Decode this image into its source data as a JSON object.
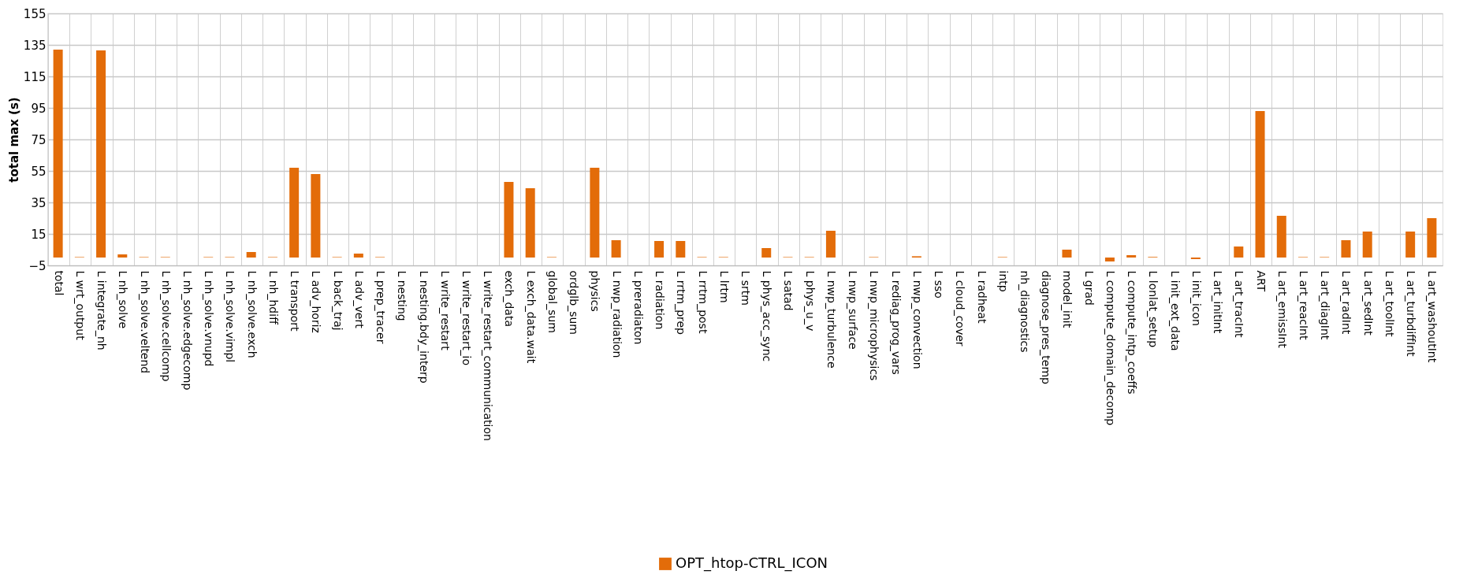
{
  "chart_data": {
    "type": "bar",
    "ylabel": "total max (s)",
    "categories": [
      "total",
      "L wrt_output",
      "L integrate_nh",
      "L nh_solve",
      "L nh_solve.veltend",
      "L nh_solve.cellcomp",
      "L nh_solve.edgecomp",
      "L nh_solve.vnupd",
      "L nh_solve.vimpl",
      "L nh_solve.exch",
      "L nh_hdiff",
      "L transport",
      "L adv_horiz",
      "L back_traj",
      "L adv_vert",
      "L prep_tracer",
      "L nesting",
      "L nesting.bdy_interp",
      "L write_restart",
      "L write_restart_io",
      "L write_restart_communication",
      "exch_data",
      "L exch_data.wait",
      "global_sum",
      "ordglb_sum",
      "physics",
      "L nwp_radiation",
      "L preradiaton",
      "L radiation",
      "L rrtm_prep",
      "L rrtm_post",
      "L lrtm",
      "L srtm",
      "L phys_acc_sync",
      "L satad",
      "L phys_u_v",
      "L nwp_turbulence",
      "L nwp_surface",
      "L nwp_microphysics",
      "L rediag_prog_vars",
      "L nwp_convection",
      "L sso",
      "L cloud_cover",
      "L radheat",
      "intp",
      "nh_diagnostics",
      "diagnose_pres_temp",
      "model_init",
      "L grad",
      "L compute_domain_decomp",
      "L compute_intp_coeffs",
      "L lonlat_setup",
      "L init_ext_data",
      "L init_icon",
      "L art_initInt",
      "L art_tracInt",
      "ART",
      "L art_emissInt",
      "L art_reacInt",
      "L art_diagInt",
      "L art_radInt",
      "L art_sedInt",
      "L art_toolInt",
      "L art_turbdiffInt",
      "L art_washoutInt"
    ],
    "series": [
      {
        "name": "OPT_htop-CTRL_ICON",
        "color": "#e36c09",
        "values": [
          132,
          0.3,
          131.5,
          2,
          0.3,
          0.3,
          null,
          0.3,
          0.3,
          3.5,
          0.3,
          57,
          53,
          0.3,
          2.5,
          0.3,
          null,
          null,
          null,
          null,
          null,
          48,
          44,
          0.3,
          null,
          57,
          11,
          null,
          10.5,
          10.5,
          0.3,
          0.3,
          null,
          6,
          0.3,
          0.3,
          17,
          null,
          0.3,
          null,
          0.8,
          null,
          null,
          null,
          0.3,
          null,
          null,
          5,
          null,
          -2.5,
          1.5,
          0.4,
          null,
          -1,
          null,
          7,
          93,
          26.5,
          0.3,
          0.3,
          11,
          16.5,
          null,
          16.5,
          25
        ]
      }
    ],
    "ylim": [
      -5,
      155
    ],
    "yticks": [
      -5,
      15,
      35,
      55,
      75,
      95,
      115,
      135,
      155
    ],
    "grid": true,
    "legend": "bottom"
  }
}
